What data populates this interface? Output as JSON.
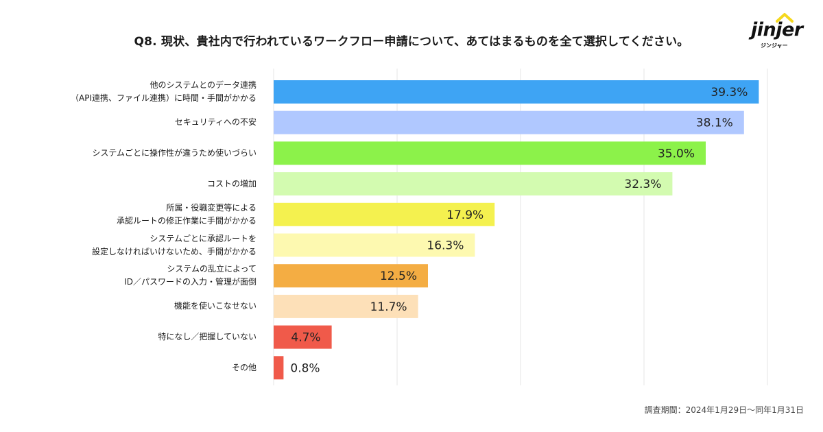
{
  "title": "Q8. 現状、貴社内で行われているワークフロー申請について、あてはまるものを全て選択してください。",
  "logo": {
    "word": "jinjer",
    "kana": "ジンジャー"
  },
  "chart_data": {
    "type": "bar",
    "orientation": "horizontal",
    "title": "Q8. 現状、貴社内で行われているワークフロー申請について、あてはまるものを全て選択してください。",
    "xlabel": "",
    "ylabel": "",
    "xlim": [
      0,
      40
    ],
    "grid": true,
    "value_suffix": "%",
    "categories": [
      [
        "他のシステムとのデータ連携",
        "（API連携、ファイル連携）に時間・手間がかかる"
      ],
      [
        "セキュリティへの不安"
      ],
      [
        "システムごとに操作性が違うため使いづらい"
      ],
      [
        "コストの増加"
      ],
      [
        "所属・役職変更等による",
        "承認ルートの修正作業に手間がかかる"
      ],
      [
        "システムごとに承認ルートを",
        "設定しなければいけないため、手間がかかる"
      ],
      [
        "システムの乱立によって",
        "ID／パスワードの入力・管理が面倒"
      ],
      [
        "機能を使いこなせない"
      ],
      [
        "特になし／把握していない"
      ],
      [
        "その他"
      ]
    ],
    "values": [
      39.3,
      38.1,
      35.0,
      32.3,
      17.9,
      16.3,
      12.5,
      11.7,
      4.7,
      0.8
    ],
    "value_labels": [
      "39.3%",
      "38.1%",
      "35.0%",
      "32.3%",
      "17.9%",
      "16.3%",
      "12.5%",
      "11.7%",
      "4.7%",
      "0.8%"
    ],
    "colors": [
      "#3ea4f4",
      "#b0c8ff",
      "#8cf24a",
      "#d3fbb0",
      "#f4f14f",
      "#fdf9b0",
      "#f4ad43",
      "#fde0b8",
      "#f05a4a",
      "#f05a4a"
    ]
  },
  "footnote": "調査期間：2024年1月29日〜同年1月31日"
}
